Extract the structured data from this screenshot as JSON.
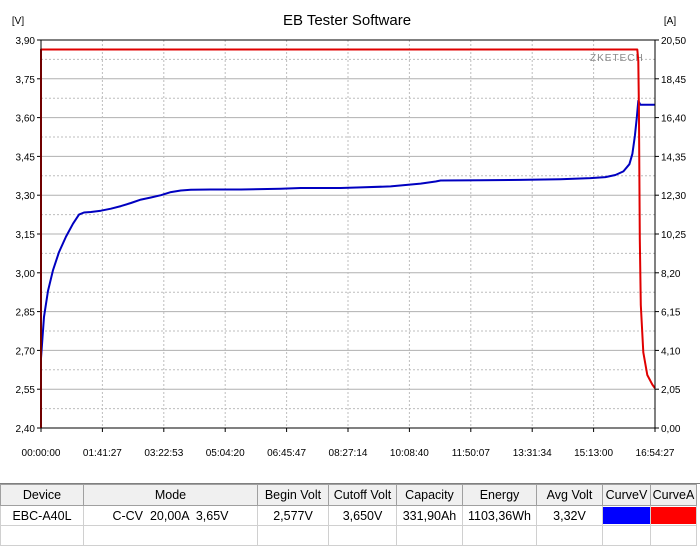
{
  "window": {
    "title": "EB Tester Software"
  },
  "chart_data": {
    "type": "line",
    "title": "EB Tester Software",
    "left_unit": "[V]",
    "right_unit": "[A]",
    "watermark": "ZKETECH",
    "grid": true,
    "ylim_left": [
      2.4,
      3.9
    ],
    "ylim_right": [
      0.0,
      20.5
    ],
    "x_range_seconds": [
      0,
      61467
    ],
    "y_ticks_left": [
      "3,90",
      "3,75",
      "3,60",
      "3,45",
      "3,30",
      "3,15",
      "3,00",
      "2,85",
      "2,70",
      "2,55",
      "2,40"
    ],
    "y_ticks_right": [
      "20,50",
      "18,45",
      "16,40",
      "14,35",
      "12,30",
      "10,25",
      "8,20",
      "6,15",
      "4,10",
      "2,05",
      "0,00"
    ],
    "x_ticks": [
      "00:00:00",
      "01:41:27",
      "03:22:53",
      "05:04:20",
      "06:45:47",
      "08:27:14",
      "10:08:40",
      "11:50:07",
      "13:31:34",
      "15:13:00",
      "16:54:27"
    ],
    "series": [
      {
        "name": "CurveV",
        "axis": "left",
        "color": "#0000c0",
        "points": [
          [
            0,
            2.67
          ],
          [
            300,
            2.83
          ],
          [
            700,
            2.93
          ],
          [
            1200,
            3.01
          ],
          [
            1800,
            3.08
          ],
          [
            2500,
            3.14
          ],
          [
            3200,
            3.19
          ],
          [
            3800,
            3.225
          ],
          [
            4300,
            3.233
          ],
          [
            5000,
            3.235
          ],
          [
            6000,
            3.24
          ],
          [
            7000,
            3.248
          ],
          [
            8000,
            3.258
          ],
          [
            9000,
            3.27
          ],
          [
            10000,
            3.283
          ],
          [
            11000,
            3.291
          ],
          [
            12000,
            3.3
          ],
          [
            13000,
            3.312
          ],
          [
            14000,
            3.318
          ],
          [
            15000,
            3.321
          ],
          [
            17000,
            3.322
          ],
          [
            20000,
            3.322
          ],
          [
            24000,
            3.325
          ],
          [
            26000,
            3.328
          ],
          [
            30000,
            3.328
          ],
          [
            32000,
            3.33
          ],
          [
            35000,
            3.334
          ],
          [
            38000,
            3.345
          ],
          [
            39500,
            3.353
          ],
          [
            40000,
            3.357
          ],
          [
            44000,
            3.358
          ],
          [
            48000,
            3.359
          ],
          [
            52000,
            3.362
          ],
          [
            55000,
            3.366
          ],
          [
            56500,
            3.37
          ],
          [
            57500,
            3.378
          ],
          [
            58300,
            3.392
          ],
          [
            58900,
            3.42
          ],
          [
            59200,
            3.46
          ],
          [
            59450,
            3.53
          ],
          [
            59650,
            3.6
          ],
          [
            59800,
            3.665
          ],
          [
            60000,
            3.65
          ],
          [
            61467,
            3.65
          ]
        ]
      },
      {
        "name": "CurveA",
        "axis": "right",
        "color": "#e00000",
        "points": [
          [
            0,
            0.0
          ],
          [
            0,
            20.0
          ],
          [
            59700,
            20.0
          ],
          [
            59800,
            19.4
          ],
          [
            59860,
            17.0
          ],
          [
            59950,
            10.0
          ],
          [
            60050,
            6.5
          ],
          [
            60300,
            4.0
          ],
          [
            60700,
            2.8
          ],
          [
            61200,
            2.3
          ],
          [
            61467,
            2.1
          ]
        ]
      }
    ]
  },
  "table": {
    "columns": [
      "Device",
      "Mode",
      "Begin Volt",
      "Cutoff Volt",
      "Capacity",
      "Energy",
      "Avg Volt",
      "CurveV",
      "CurveA"
    ],
    "row": [
      "EBC-A40L",
      "C-CV  20,00A  3,65V",
      "2,577V",
      "3,650V",
      "331,90Ah",
      "1103,36Wh",
      "3,32V",
      "",
      ""
    ],
    "swatch_colors": {
      "CurveV": "#0000ff",
      "CurveA": "#ff0000"
    }
  }
}
